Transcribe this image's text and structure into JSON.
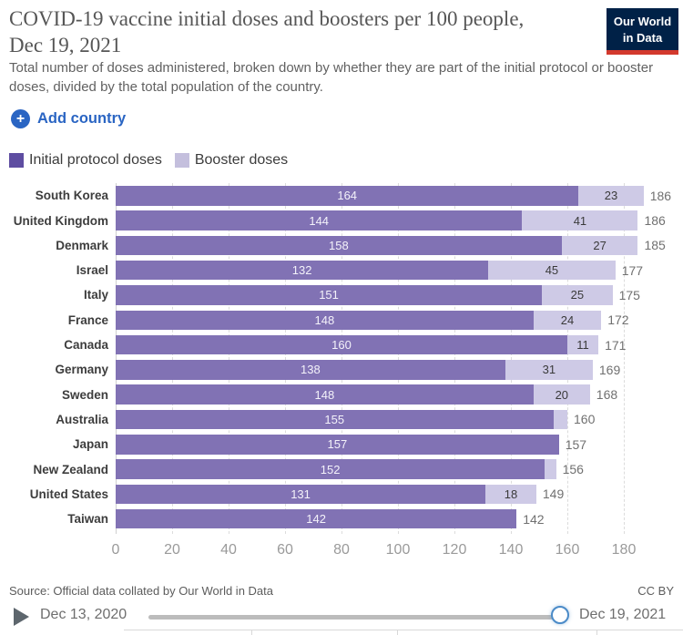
{
  "header": {
    "title": "COVID-19 vaccine initial doses and boosters per 100 people, Dec 19, 2021",
    "subtitle": "Total number of doses administered, broken down by whether they are part of the initial protocol or booster doses, divided by the total population of the country.",
    "logo": {
      "line1": "Our World",
      "line2": "in Data",
      "bg": "#002147",
      "accent": "#d3392d"
    }
  },
  "controls": {
    "add_country_label": "Add country",
    "accent_blue": "#2a65c3",
    "icons": {
      "plus": "+",
      "play": "play-triangle"
    }
  },
  "legend": {
    "items": [
      {
        "label": "Initial protocol doses",
        "color": "#5e4da1"
      },
      {
        "label": "Booster doses",
        "color": "#c4bfdd"
      }
    ]
  },
  "chart_data": {
    "type": "bar",
    "stacked": true,
    "orientation": "horizontal",
    "categories": [
      "South Korea",
      "United Kingdom",
      "Denmark",
      "Israel",
      "Italy",
      "France",
      "Canada",
      "Germany",
      "Sweden",
      "Australia",
      "Japan",
      "New Zealand",
      "United States",
      "Taiwan"
    ],
    "series": [
      {
        "name": "Initial protocol doses",
        "color": "#8172b4",
        "values": [
          164,
          144,
          158,
          132,
          151,
          148,
          160,
          138,
          148,
          155,
          157,
          152,
          131,
          142
        ]
      },
      {
        "name": "Booster doses",
        "color": "#cecae6",
        "values": [
          23,
          41,
          27,
          45,
          25,
          24,
          11,
          31,
          20,
          5,
          0,
          4,
          18,
          0
        ]
      }
    ],
    "initial_labels": [
      "164",
      "144",
      "158",
      "132",
      "151",
      "148",
      "160",
      "138",
      "148",
      "155",
      "157",
      "152",
      "131",
      "142"
    ],
    "booster_labels": [
      "23",
      "41",
      "27",
      "45",
      "25",
      "24",
      "11",
      "31",
      "20",
      "",
      "",
      "",
      "18",
      ""
    ],
    "totals": [
      "186",
      "186",
      "185",
      "177",
      "175",
      "172",
      "171",
      "169",
      "168",
      "160",
      "157",
      "156",
      "149",
      "142"
    ],
    "xticks": [
      0,
      20,
      40,
      60,
      80,
      100,
      120,
      140,
      160,
      180
    ],
    "xlim": [
      0,
      180
    ],
    "grid": true,
    "legend_position": "top-left"
  },
  "footer": {
    "source": "Source: Official data collated by Our World in Data",
    "license": "CC BY"
  },
  "timeline": {
    "start": "Dec 13, 2020",
    "end": "Dec 19, 2021"
  }
}
